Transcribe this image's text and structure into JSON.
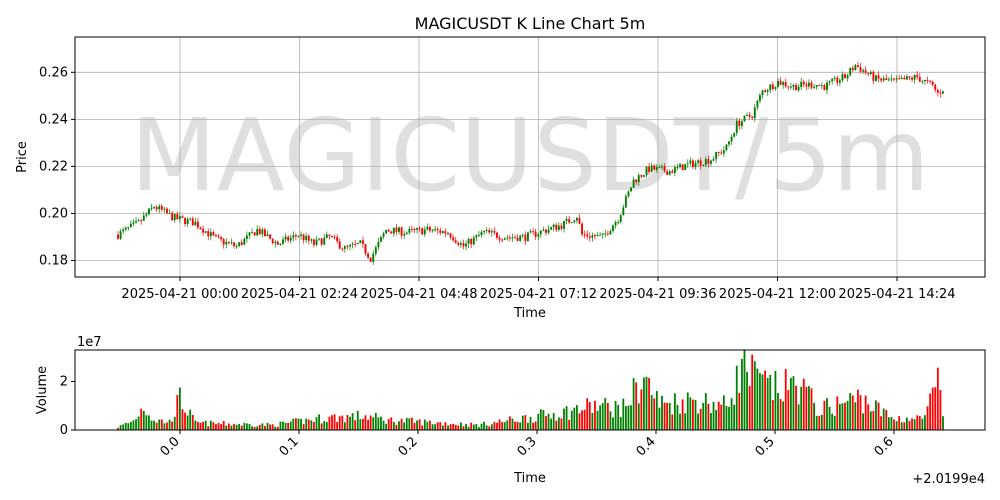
{
  "chart_data": [
    {
      "type": "candlestick",
      "title": "MAGICUSDT K Line Chart 5m",
      "watermark": "MAGICUSDT/5m",
      "ylabel": "Price",
      "xlabel": "Time",
      "x_tick_labels": [
        "2025-04-21 00:00",
        "2025-04-21 02:24",
        "2025-04-21 04:48",
        "2025-04-21 07:12",
        "2025-04-21 09:36",
        "2025-04-21 12:00",
        "2025-04-21 14:24"
      ],
      "y_ticks": [
        "0.18",
        "0.20",
        "0.22",
        "0.24",
        "0.26"
      ],
      "ylim": [
        0.173,
        0.275
      ],
      "grid": true,
      "up_color": "#008000",
      "down_color": "#ff0000",
      "price_anchors": [
        {
          "i": 0,
          "p": 0.191
        },
        {
          "i": 8,
          "p": 0.196
        },
        {
          "i": 14,
          "p": 0.203
        },
        {
          "i": 22,
          "p": 0.198
        },
        {
          "i": 30,
          "p": 0.196
        },
        {
          "i": 38,
          "p": 0.189
        },
        {
          "i": 46,
          "p": 0.186
        },
        {
          "i": 54,
          "p": 0.193
        },
        {
          "i": 62,
          "p": 0.187
        },
        {
          "i": 70,
          "p": 0.191
        },
        {
          "i": 76,
          "p": 0.187
        },
        {
          "i": 82,
          "p": 0.19
        },
        {
          "i": 88,
          "p": 0.185
        },
        {
          "i": 94,
          "p": 0.187
        },
        {
          "i": 98,
          "p": 0.181
        },
        {
          "i": 104,
          "p": 0.193
        },
        {
          "i": 112,
          "p": 0.192
        },
        {
          "i": 120,
          "p": 0.193
        },
        {
          "i": 128,
          "p": 0.192
        },
        {
          "i": 134,
          "p": 0.186
        },
        {
          "i": 142,
          "p": 0.192
        },
        {
          "i": 150,
          "p": 0.19
        },
        {
          "i": 158,
          "p": 0.19
        },
        {
          "i": 166,
          "p": 0.193
        },
        {
          "i": 172,
          "p": 0.195
        },
        {
          "i": 178,
          "p": 0.199
        },
        {
          "i": 180,
          "p": 0.191
        },
        {
          "i": 188,
          "p": 0.19
        },
        {
          "i": 194,
          "p": 0.198
        },
        {
          "i": 200,
          "p": 0.214
        },
        {
          "i": 206,
          "p": 0.219
        },
        {
          "i": 214,
          "p": 0.218
        },
        {
          "i": 222,
          "p": 0.221
        },
        {
          "i": 230,
          "p": 0.223
        },
        {
          "i": 236,
          "p": 0.228
        },
        {
          "i": 240,
          "p": 0.238
        },
        {
          "i": 246,
          "p": 0.242
        },
        {
          "i": 250,
          "p": 0.252
        },
        {
          "i": 256,
          "p": 0.256
        },
        {
          "i": 262,
          "p": 0.254
        },
        {
          "i": 270,
          "p": 0.255
        },
        {
          "i": 274,
          "p": 0.254
        },
        {
          "i": 282,
          "p": 0.258
        },
        {
          "i": 286,
          "p": 0.263
        },
        {
          "i": 294,
          "p": 0.257
        },
        {
          "i": 302,
          "p": 0.256
        },
        {
          "i": 310,
          "p": 0.258
        },
        {
          "i": 316,
          "p": 0.254
        },
        {
          "i": 318,
          "p": 0.251
        },
        {
          "i": 320,
          "p": 0.253
        }
      ],
      "candle_count": 321
    },
    {
      "type": "bar",
      "ylabel": "Volume",
      "xlabel": "Time",
      "y_exponent_label": "1e7",
      "y_ticks": [
        "0",
        "2"
      ],
      "ylim": [
        0,
        3.3
      ],
      "x_ticks": [
        "0.0",
        "0.1",
        "0.2",
        "0.3",
        "0.4",
        "0.5",
        "0.6"
      ],
      "x_offset_label": "+2.0199e4",
      "volume_anchors": [
        {
          "i": 0,
          "v": 0.15
        },
        {
          "i": 6,
          "v": 0.45
        },
        {
          "i": 10,
          "v": 1.2
        },
        {
          "i": 14,
          "v": 0.5
        },
        {
          "i": 20,
          "v": 0.4
        },
        {
          "i": 24,
          "v": 1.55
        },
        {
          "i": 30,
          "v": 0.35
        },
        {
          "i": 60,
          "v": 0.25
        },
        {
          "i": 80,
          "v": 0.6
        },
        {
          "i": 96,
          "v": 0.7
        },
        {
          "i": 104,
          "v": 0.5
        },
        {
          "i": 140,
          "v": 0.25
        },
        {
          "i": 176,
          "v": 0.95
        },
        {
          "i": 184,
          "v": 1.2
        },
        {
          "i": 196,
          "v": 1.1
        },
        {
          "i": 204,
          "v": 2.6
        },
        {
          "i": 210,
          "v": 1.3
        },
        {
          "i": 224,
          "v": 1.5
        },
        {
          "i": 236,
          "v": 1.2
        },
        {
          "i": 242,
          "v": 3.1
        },
        {
          "i": 250,
          "v": 2.3
        },
        {
          "i": 256,
          "v": 2.0
        },
        {
          "i": 264,
          "v": 2.3
        },
        {
          "i": 272,
          "v": 1.0
        },
        {
          "i": 288,
          "v": 1.6
        },
        {
          "i": 300,
          "v": 0.6
        },
        {
          "i": 312,
          "v": 0.55
        },
        {
          "i": 318,
          "v": 2.2
        },
        {
          "i": 320,
          "v": 0.8
        }
      ]
    }
  ]
}
